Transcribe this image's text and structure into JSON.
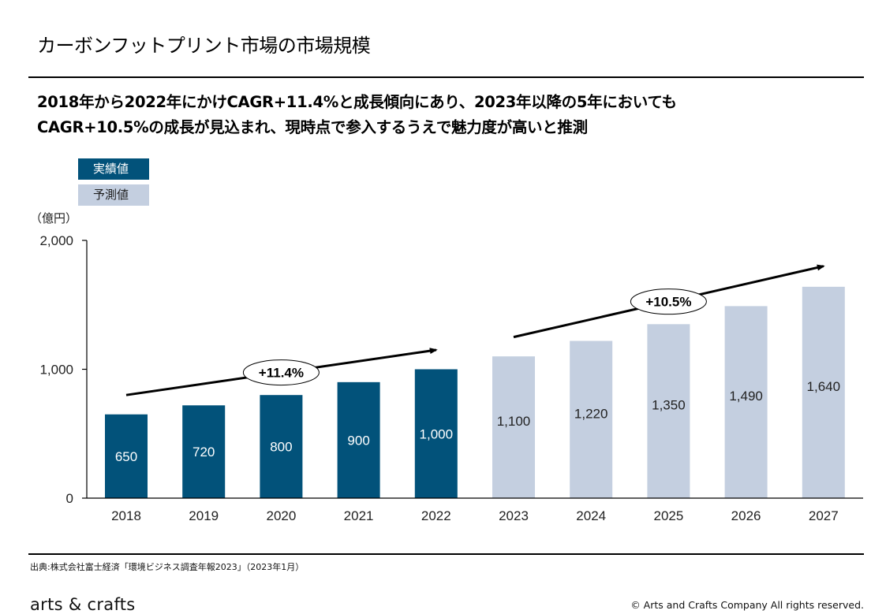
{
  "page": {
    "title": "カーボンフットプリント市場の市場規模",
    "headline_line1": "2018年から2022年にかけCAGR+11.4%と成長傾向にあり、2023年以降の5年においても",
    "headline_line2": "CAGR+10.5%の成長が見込まれ、現時点で参入するうえで魅力度が高いと推測",
    "source": "出典:株式会社富士経済「環境ビジネス調査年報2023」（2023年1月）",
    "logo": "arts & crafts",
    "copyright": "© Arts and Crafts Company All rights reserved."
  },
  "colors": {
    "actual": "#02527a",
    "forecast": "#c4cfe0",
    "actual_label": "#ffffff",
    "forecast_label": "#222222"
  },
  "chart_data": {
    "type": "bar",
    "title": "",
    "xlabel": "",
    "ylabel": "（億円）",
    "ylim": [
      0,
      2000
    ],
    "yticks": [
      0,
      1000,
      2000
    ],
    "ytick_labels": [
      "0",
      "1,000",
      "2,000"
    ],
    "grid": false,
    "legend_position": "top-left",
    "legend": [
      {
        "name": "実績値",
        "kind": "actual"
      },
      {
        "name": "予測値",
        "kind": "forecast"
      }
    ],
    "categories": [
      "2018",
      "2019",
      "2020",
      "2021",
      "2022",
      "2023",
      "2024",
      "2025",
      "2026",
      "2027"
    ],
    "values": [
      650,
      720,
      800,
      900,
      1000,
      1100,
      1220,
      1350,
      1490,
      1640
    ],
    "value_labels": [
      "650",
      "720",
      "800",
      "900",
      "1,000",
      "1,100",
      "1,220",
      "1,350",
      "1,490",
      "1,640"
    ],
    "kinds": [
      "actual",
      "actual",
      "actual",
      "actual",
      "actual",
      "forecast",
      "forecast",
      "forecast",
      "forecast",
      "forecast"
    ],
    "annotations": [
      {
        "type": "growth-arrow",
        "label": "+11.4%",
        "from": "2018",
        "to": "2022",
        "from_value": 800,
        "to_value": 1150
      },
      {
        "type": "growth-arrow",
        "label": "+10.5%",
        "from": "2023",
        "to": "2027",
        "from_value": 1250,
        "to_value": 1800
      }
    ]
  }
}
